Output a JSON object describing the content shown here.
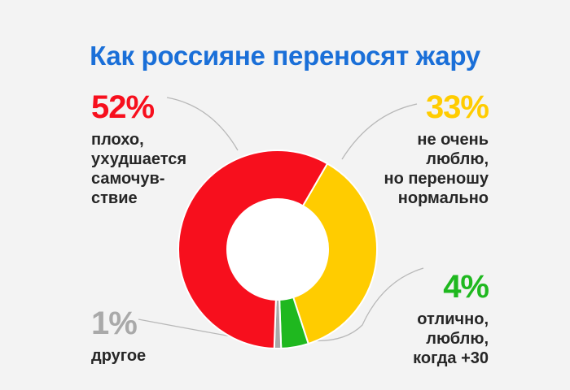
{
  "title": "Как россияне переносят жару",
  "colors": {
    "title": "#1a6fd8",
    "text": "#262626",
    "leader": "#b8b8b8"
  },
  "chart_data": {
    "type": "pie",
    "title": "Как россияне переносят жару",
    "slices": [
      {
        "value": 33,
        "percent_label": "33%",
        "label": "не очень\nлюблю,\nно переношу\nнормально",
        "color": "#ffcc00"
      },
      {
        "value": 4,
        "percent_label": "4%",
        "label": "отлично,\nлюблю,\nкогда +30",
        "color": "#1fb81f"
      },
      {
        "value": 1,
        "percent_label": "1%",
        "label": "другое",
        "color": "#a9a9a9"
      },
      {
        "value": 52,
        "percent_label": "52%",
        "label": "плохо,\nухудшается\nсамочув-\nствие",
        "color": "#f70f1d"
      }
    ],
    "donut": true,
    "legend": "none"
  }
}
